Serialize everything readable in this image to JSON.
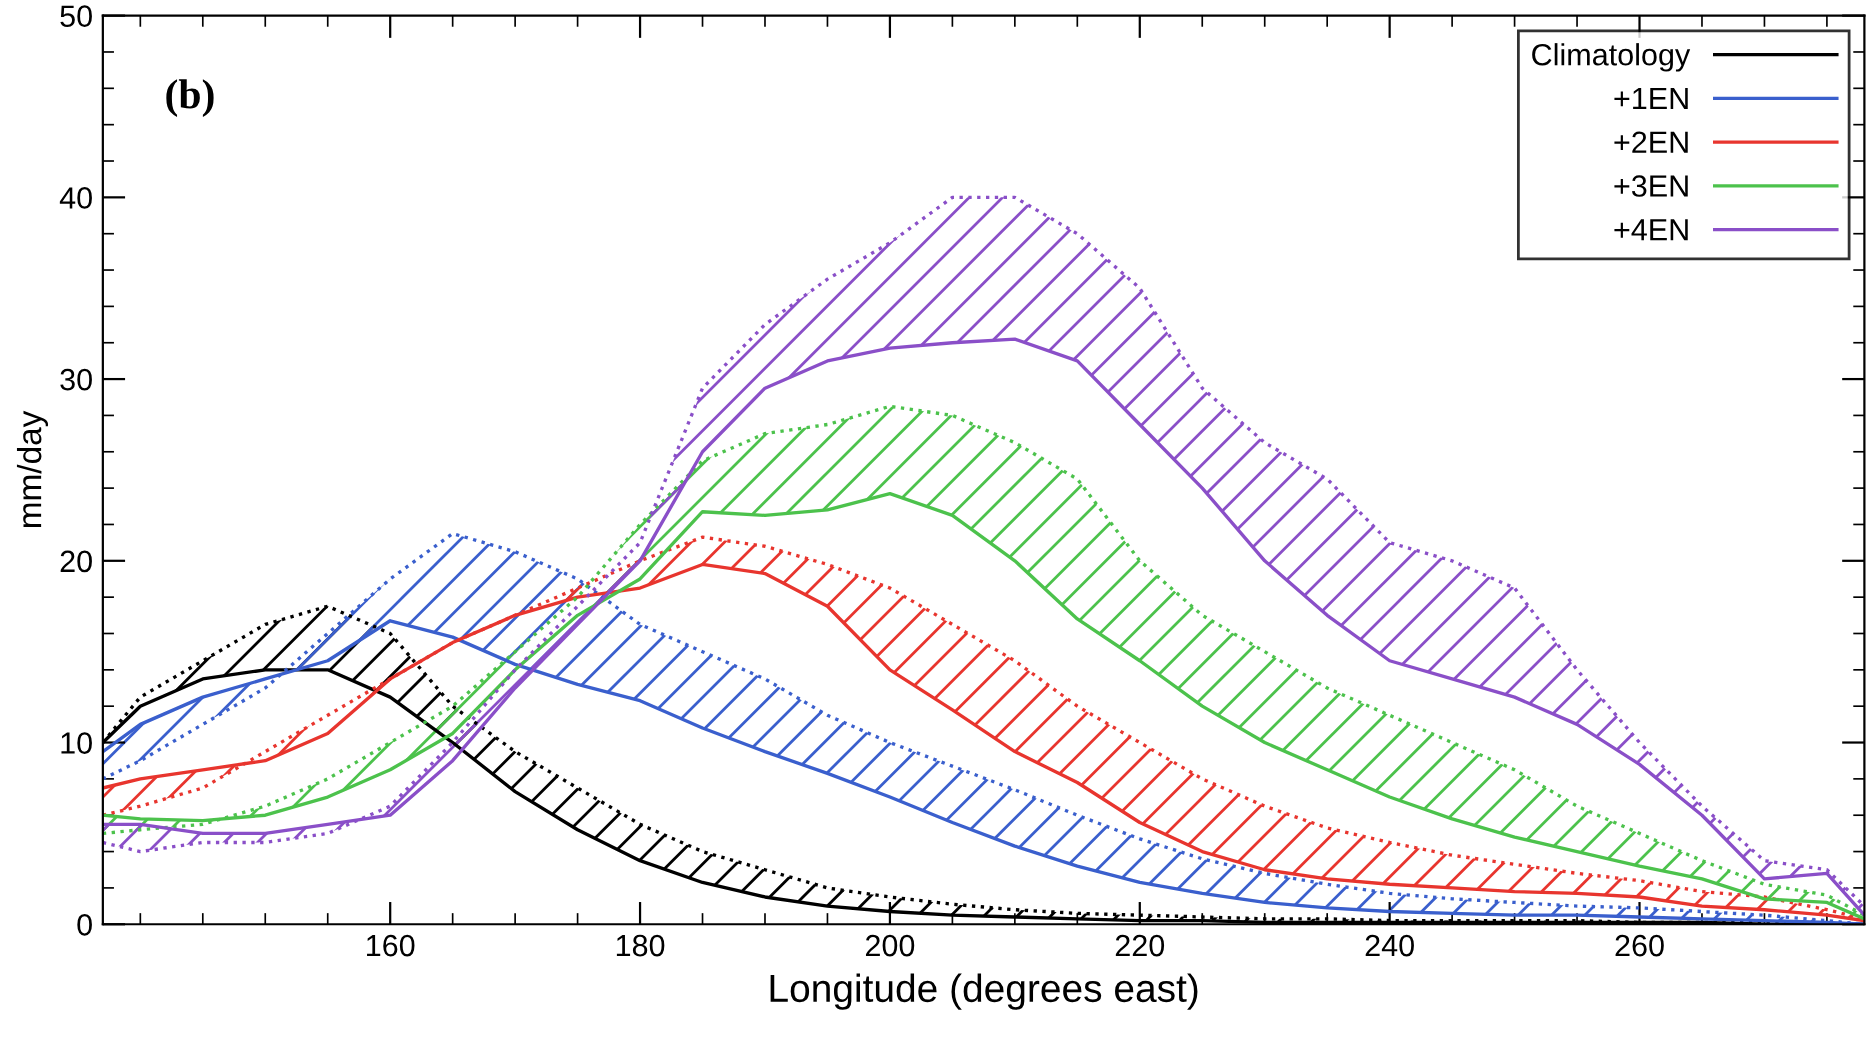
{
  "chart_data": {
    "type": "line",
    "xlabel": "Longitude (degrees east)",
    "ylabel": "mm/day",
    "annotations": [
      "(b)"
    ],
    "xlim": [
      137,
      278
    ],
    "xticks": [
      160,
      180,
      200,
      220,
      240,
      260
    ],
    "ylim": [
      0,
      50
    ],
    "yticks": [
      0,
      10,
      20,
      30,
      40,
      50
    ],
    "grid": false,
    "legend": "top right",
    "line_style": "solid",
    "x": [
      137,
      140,
      145,
      150,
      155,
      160,
      165,
      170,
      175,
      180,
      185,
      190,
      195,
      200,
      205,
      210,
      215,
      220,
      225,
      230,
      235,
      240,
      245,
      250,
      255,
      260,
      265,
      270,
      275,
      278
    ],
    "series": [
      {
        "name": "Climatology",
        "color": "#000000",
        "values": [
          10,
          12,
          13.5,
          14,
          14,
          12.5,
          10,
          7.3,
          5.2,
          3.5,
          2.3,
          1.5,
          1,
          0.7,
          0.5,
          0.4,
          0.3,
          0.2,
          0.2,
          0.1,
          0.1,
          0.1,
          0.1,
          0.1,
          0.1,
          0.1,
          0.1,
          0,
          0,
          0
        ],
        "lower": [
          10,
          12,
          13.5,
          14,
          14,
          12.5,
          10,
          7.3,
          5.2,
          3.5,
          2.3,
          1.5,
          1,
          0.7,
          0.5,
          0.4,
          0.3,
          0.2,
          0.2,
          0.1,
          0.1,
          0.1,
          0.1,
          0.1,
          0.1,
          0.1,
          0.1,
          0,
          0,
          0
        ],
        "upper": [
          10,
          12.5,
          14.5,
          16.5,
          17.5,
          16,
          12,
          9.5,
          7.5,
          5.5,
          4,
          3,
          2,
          1.5,
          1.1,
          0.8,
          0.6,
          0.5,
          0.4,
          0.3,
          0.3,
          0.2,
          0.2,
          0.2,
          0.2,
          0.1,
          0.1,
          0.1,
          0,
          0
        ]
      },
      {
        "color": "#000000",
        "line_style": "dotted",
        "values": [
          10,
          12.5,
          14.5,
          16.5,
          17.5,
          16,
          12,
          9.5,
          7.5,
          5.5,
          4,
          3,
          2,
          1.5,
          1.1,
          0.8,
          0.6,
          0.5,
          0.4,
          0.3,
          0.3,
          0.2,
          0.2,
          0.2,
          0.2,
          0.1,
          0.1,
          0.1,
          0,
          0
        ]
      },
      {
        "name": "+1EN",
        "color": "#3a5fcd",
        "values": [
          9.5,
          11,
          12.5,
          13.5,
          14.5,
          16.7,
          15.8,
          14.3,
          13.2,
          12.3,
          10.8,
          9.5,
          8.3,
          7,
          5.6,
          4.3,
          3.2,
          2.3,
          1.7,
          1.2,
          0.9,
          0.7,
          0.6,
          0.5,
          0.5,
          0.4,
          0.3,
          0.2,
          0.1,
          0
        ],
        "lower": [
          9.5,
          11,
          12.5,
          13.5,
          14.5,
          16.7,
          15.8,
          14.3,
          13.2,
          12.3,
          10.8,
          9.5,
          8.3,
          7,
          5.6,
          4.3,
          3.2,
          2.3,
          1.7,
          1.2,
          0.9,
          0.7,
          0.6,
          0.5,
          0.5,
          0.4,
          0.3,
          0.2,
          0.1,
          0
        ],
        "upper": [
          8,
          9,
          11,
          13,
          16,
          19,
          21.5,
          20.5,
          19,
          16.5,
          15,
          13.5,
          11.5,
          10,
          8.7,
          7.4,
          6,
          4.7,
          3.6,
          2.8,
          2.2,
          1.7,
          1.4,
          1.2,
          1,
          0.9,
          0.7,
          0.5,
          0.2,
          0
        ]
      },
      {
        "color": "#3a5fcd",
        "line_style": "dotted",
        "values": [
          8,
          9,
          11,
          13,
          16,
          19,
          21.5,
          20.5,
          19,
          16.5,
          15,
          13.5,
          11.5,
          10,
          8.7,
          7.4,
          6,
          4.7,
          3.6,
          2.8,
          2.2,
          1.7,
          1.4,
          1.2,
          1,
          0.9,
          0.7,
          0.5,
          0.2,
          0
        ]
      },
      {
        "name": "+2EN",
        "color": "#e8352e",
        "values": [
          7.5,
          8,
          8.5,
          9,
          10.5,
          13.5,
          15.5,
          17,
          18,
          18.5,
          19.8,
          19.3,
          17.5,
          14,
          11.8,
          9.5,
          7.8,
          5.6,
          4,
          3,
          2.5,
          2.2,
          2,
          1.8,
          1.7,
          1.5,
          1,
          0.8,
          0.5,
          0.2
        ],
        "lower": [
          7.5,
          8,
          8.5,
          9,
          10.5,
          13.5,
          15.5,
          17,
          18,
          18.5,
          19.8,
          19.3,
          17.5,
          14,
          11.8,
          9.5,
          7.8,
          5.6,
          4,
          3,
          2.5,
          2.2,
          2,
          1.8,
          1.7,
          1.5,
          1,
          0.8,
          0.5,
          0.2
        ],
        "upper": [
          6,
          6.5,
          7.5,
          9.5,
          11.5,
          13.5,
          15.5,
          17,
          18.5,
          20,
          21.3,
          20.8,
          19.8,
          18.5,
          16.5,
          14.5,
          12,
          10,
          8,
          6.5,
          5.3,
          4.5,
          3.8,
          3.3,
          2.8,
          2.4,
          1.8,
          1.5,
          0.8,
          0.3
        ]
      },
      {
        "color": "#e8352e",
        "line_style": "dotted",
        "values": [
          6,
          6.5,
          7.5,
          9.5,
          11.5,
          13.5,
          15.5,
          17,
          18.5,
          20,
          21.3,
          20.8,
          19.8,
          18.5,
          16.5,
          14.5,
          12,
          10,
          8,
          6.5,
          5.3,
          4.5,
          3.8,
          3.3,
          2.8,
          2.4,
          1.8,
          1.5,
          0.8,
          0.3
        ]
      },
      {
        "name": "+3EN",
        "color": "#4cc24c",
        "values": [
          6,
          5.8,
          5.7,
          6,
          7,
          8.5,
          10.5,
          14,
          17,
          19,
          22.7,
          22.5,
          22.8,
          23.7,
          22.5,
          20,
          16.8,
          14.5,
          12,
          10,
          8.5,
          7,
          5.8,
          4.8,
          4,
          3.2,
          2.5,
          1.4,
          1.2,
          0.3
        ],
        "lower": [
          6,
          5.8,
          5.7,
          6,
          7,
          8.5,
          10.5,
          14,
          17,
          19,
          22.7,
          22.5,
          22.8,
          23.7,
          22.5,
          20,
          16.8,
          14.5,
          12,
          10,
          8.5,
          7,
          5.8,
          4.8,
          4,
          3.2,
          2.5,
          1.4,
          1.2,
          0.3
        ],
        "upper": [
          5,
          5.2,
          5.5,
          6.5,
          8,
          10,
          12,
          15,
          18,
          22,
          25.5,
          27,
          27.5,
          28.5,
          28,
          26.5,
          24.5,
          20,
          17,
          15,
          13,
          11.5,
          10,
          8.5,
          6.5,
          5,
          3.5,
          2.2,
          1.6,
          0.5
        ]
      },
      {
        "color": "#4cc24c",
        "line_style": "dotted",
        "values": [
          5,
          5.2,
          5.5,
          6.5,
          8,
          10,
          12,
          15,
          18,
          22,
          25.5,
          27,
          27.5,
          28.5,
          28,
          26.5,
          24.5,
          20,
          17,
          15,
          13,
          11.5,
          10,
          8.5,
          6.5,
          5,
          3.5,
          2.2,
          1.6,
          0.5
        ]
      },
      {
        "name": "+4EN",
        "color": "#8a4fc8",
        "values": [
          5.5,
          5.5,
          5,
          5,
          5.5,
          6,
          9,
          13,
          16.5,
          20,
          26,
          29.5,
          31,
          31.7,
          32,
          32.2,
          31,
          27.5,
          24,
          20,
          17,
          14.5,
          13.5,
          12.5,
          11,
          8.8,
          6,
          2.5,
          2.8,
          0.5
        ],
        "lower": [
          5.5,
          5.5,
          5,
          5,
          5.5,
          6,
          9,
          13,
          16.5,
          20,
          26,
          29.5,
          31,
          31.7,
          32,
          32.2,
          31,
          27.5,
          24,
          20,
          17,
          14.5,
          13.5,
          12.5,
          11,
          8.8,
          6,
          2.5,
          2.8,
          0.5
        ],
        "upper": [
          4.5,
          4,
          4.5,
          4.5,
          5,
          6.5,
          10,
          14,
          17.5,
          21,
          29.5,
          33,
          35.5,
          37.5,
          40,
          40,
          38,
          35,
          29.5,
          26.5,
          24.5,
          21,
          20,
          18.5,
          14,
          10,
          6.5,
          3.5,
          3,
          1
        ]
      },
      {
        "color": "#8a4fc8",
        "line_style": "dotted",
        "values": [
          4.5,
          4,
          4.5,
          4.5,
          5,
          6.5,
          10,
          14,
          17.5,
          21,
          29.5,
          33,
          35.5,
          37.5,
          40,
          40,
          38,
          35,
          29.5,
          26.5,
          24.5,
          21,
          20,
          18.5,
          14,
          10,
          6.5,
          3.5,
          3,
          1
        ]
      }
    ]
  }
}
